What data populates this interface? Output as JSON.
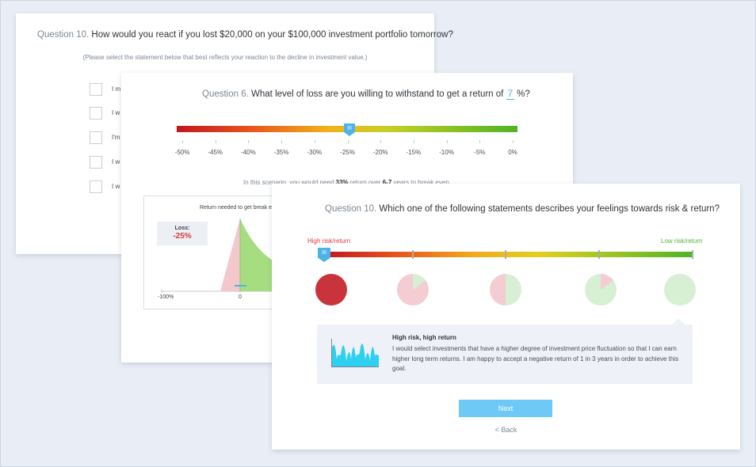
{
  "card1": {
    "question_number": "Question 10.",
    "question_text": "How would you react if you lost $20,000 on your $100,000 investment portfolio tomorrow?",
    "hint": "(Please select the statement below that best reflects your reaction to the decline in investment value.)",
    "options": [
      "I m",
      "I w",
      "I'm",
      "I w",
      "I w"
    ]
  },
  "card2": {
    "question_number": "Question 6.",
    "question_prefix": "What level of loss are you willing to withstand to get a return of",
    "return_value": "7",
    "question_suffix": "%?",
    "slider": {
      "handle_glyph": "III",
      "selected": "-25%"
    },
    "ticks": [
      "-50%",
      "-45%",
      "-40%",
      "-35%",
      "-30%",
      "-25%",
      "-20%",
      "-15%",
      "-10%",
      "-5%",
      "0%"
    ],
    "scenario": {
      "prefix": "In this scenario, you would need",
      "return_needed": "33%",
      "middle": "return over",
      "years": "6-7",
      "suffix": "years to break even."
    },
    "chart": {
      "title": "Return needed to get break e",
      "loss_label": "Loss:",
      "loss_value": "-25%",
      "axis_left": "-100%",
      "axis_zero": "0",
      "colors": {
        "loss": "#f3c7cc",
        "gain": "#a6dd80"
      }
    }
  },
  "card3": {
    "question_number": "Question 10.",
    "question_text": "Which one of the following statements describes your feelings towards risk & return?",
    "high_label": "High risk/return",
    "low_label": "Low risk/return",
    "handle_glyph": "III",
    "levels": [
      {
        "risk_share": 100
      },
      {
        "risk_share": 85
      },
      {
        "risk_share": 50
      },
      {
        "risk_share": 15
      },
      {
        "risk_share": 0
      }
    ],
    "selected_level": 1,
    "description": {
      "title": "High risk, high return",
      "body": "I would select investments that have a higher degree of investment price fluctuation so that I can earn higher long term returns. I am happy to accept a negative return of 1 in 3 years in order to achieve this goal."
    },
    "next_label": "Next",
    "back_label": "< Back",
    "colors": {
      "selected": "#c9333b",
      "risk": "#f4cdd2",
      "safe": "#d7efd3",
      "accent": "#4bb3ea",
      "high": "#d83b3b",
      "low": "#5bb23a"
    }
  }
}
